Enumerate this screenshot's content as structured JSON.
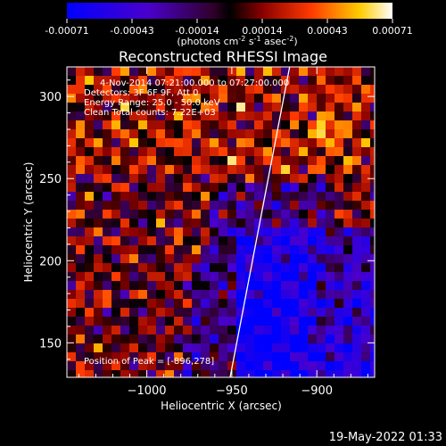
{
  "colorbar": {
    "ticks": [
      "-0.00071",
      "-0.00043",
      "-0.00014",
      "0.00014",
      "0.00043",
      "0.00071"
    ],
    "units": "(photons cm",
    "units_exp1": "-2",
    "units_mid": " s",
    "units_exp2": "-1",
    "units_end": " asec",
    "units_exp3": "-2",
    "units_close": ")"
  },
  "footer": {
    "timestamp": "19-May-2022 01:33"
  },
  "chart_data": {
    "type": "heatmap",
    "title": "Reconstructed RHESSI Image",
    "xlabel": "Heliocentric X (arcsec)",
    "ylabel": "Heliocentric Y (arcsec)",
    "xlim": [
      -1047,
      -866
    ],
    "ylim": [
      129,
      318
    ],
    "x_ticks": [
      -1000,
      -950,
      -900
    ],
    "x_tick_labels": [
      "−1000",
      "−950",
      "−900"
    ],
    "y_ticks": [
      150,
      200,
      250,
      300
    ],
    "y_tick_labels": [
      "150",
      "200",
      "250",
      "300"
    ],
    "value_range": [
      -0.00071,
      0.00071
    ],
    "colormap": "red-temperature (blue-purple negative, red-yellow-white positive)",
    "limb_line": [
      [
        -951,
        129
      ],
      [
        -916,
        318
      ]
    ],
    "annotations": [
      "4-Nov-2014 07:21:00.000 to 07:27:00.000",
      "Detectors: 3F 6F 9F, Att 0",
      "Energy Range: 25.0 - 50.0 keV",
      "Clean    Total counts: 7.22E+03"
    ],
    "peak_label": "Position of Peak = [-896,278]",
    "peak": [
      -896,
      278
    ],
    "grid": false,
    "legend": "none"
  }
}
